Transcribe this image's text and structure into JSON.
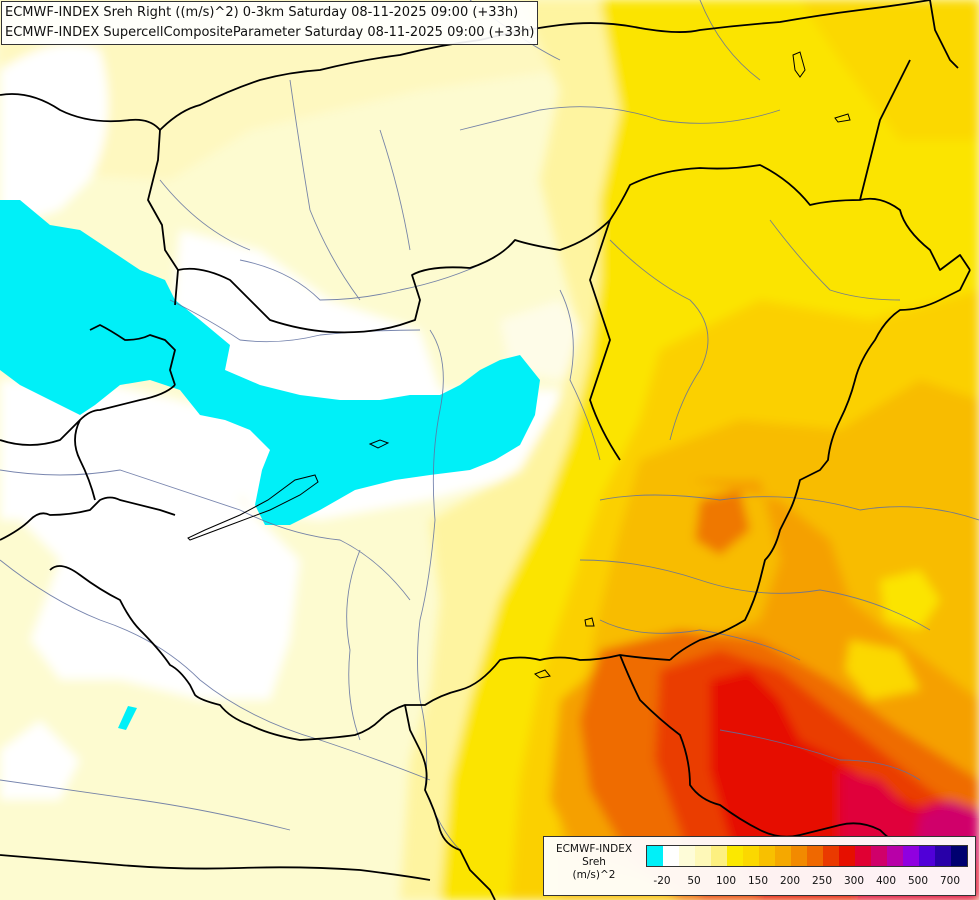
{
  "title": {
    "line1": "ECMWF-INDEX Sreh Right ((m/s)^2) 0-3km Saturday 08-11-2025 09:00 (+33h)",
    "line2": "ECMWF-INDEX SupercellCompositeParameter Saturday 08-11-2025 09:00 (+33h)"
  },
  "legend": {
    "line1": "ECMWF-INDEX",
    "line2": "Sreh",
    "line3": "(m/s)^2",
    "colors": [
      "#00f0f8",
      "#ffffff",
      "#fefcd8",
      "#fef8b8",
      "#fdf080",
      "#fbe800",
      "#fbd800",
      "#f8c000",
      "#f5a800",
      "#f28a00",
      "#ef6800",
      "#ea3a00",
      "#e60f00",
      "#e00033",
      "#d0006a",
      "#b800a8",
      "#9000e0",
      "#5000d8",
      "#2800a8",
      "#000070"
    ],
    "ticks": [
      "-20",
      "50",
      "100",
      "150",
      "200",
      "250",
      "300",
      "400",
      "500",
      "700"
    ]
  },
  "colors": {
    "cyan": "#00f0f8",
    "white": "#ffffff",
    "pale_yellow": "#fefcd8",
    "light_yellow": "#fef4a8",
    "yellow": "#fbe400",
    "gold": "#fbd000",
    "light_orange": "#f8bc00",
    "orange": "#f5a000",
    "dark_orange": "#ef6c00",
    "red_orange": "#ea3c00",
    "red": "#e60f00",
    "crimson": "#e0003a",
    "magenta": "#d0006a",
    "border": "#000000",
    "river": "#6070a0"
  }
}
